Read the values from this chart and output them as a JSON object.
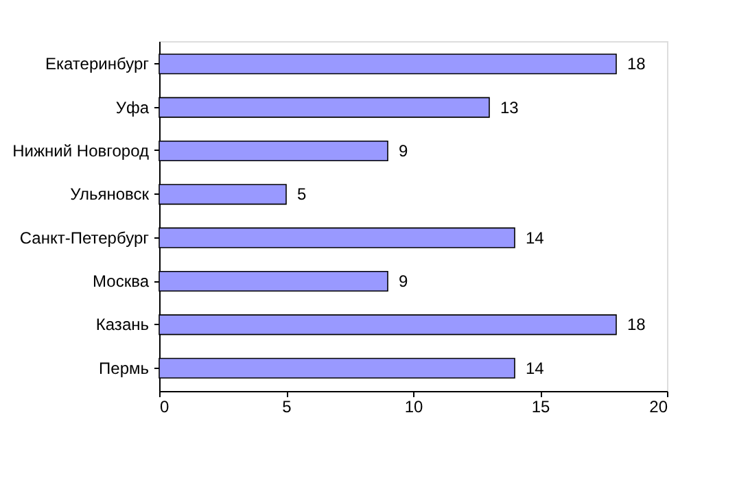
{
  "chart_data": {
    "type": "bar",
    "orientation": "horizontal",
    "categories": [
      "Екатеринбург",
      "Уфа",
      "Нижний Новгород",
      "Ульяновск",
      "Санкт-Петербург",
      "Москва",
      "Казань",
      "Пермь"
    ],
    "values": [
      18,
      13,
      9,
      5,
      14,
      9,
      18,
      14
    ],
    "color": "#9999ff",
    "xlim": [
      0,
      20
    ],
    "xticks": [
      0,
      5,
      10,
      15,
      20
    ],
    "data_labels": true,
    "grid": false
  }
}
